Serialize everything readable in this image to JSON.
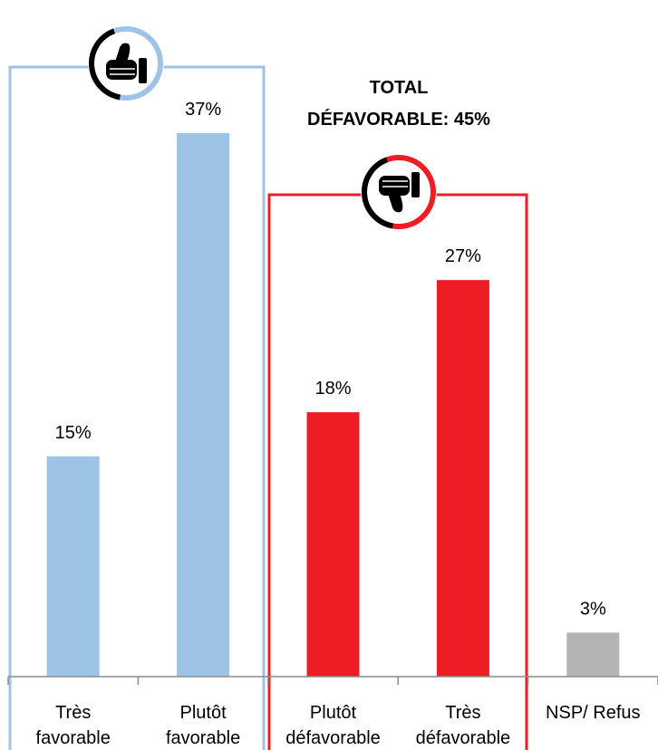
{
  "colors": {
    "favorable": "#9dc3e6",
    "defavorable": "#ee1c25",
    "neutral": "#b4b4b4",
    "favorable_frame": "#9dc3e6",
    "defavorable_frame": "#ee1c25",
    "axis": "#8c8c8c",
    "icon": "#000000"
  },
  "icons": {
    "favorable": "thumbs-up-icon",
    "defavorable": "thumbs-down-icon"
  },
  "total_defavorable": {
    "line1": "TOTAL",
    "line2": "DÉFAVORABLE: 45%"
  },
  "chart_data": {
    "type": "bar",
    "categories": [
      [
        "Très",
        "favorable"
      ],
      [
        "Plutôt",
        "favorable"
      ],
      [
        "Plutôt",
        "défavorable"
      ],
      [
        "Très",
        "défavorable"
      ],
      [
        "NSP/ Refus"
      ]
    ],
    "values": [
      15,
      37,
      18,
      27,
      3
    ],
    "value_labels": [
      "15%",
      "37%",
      "18%",
      "27%",
      "3%"
    ],
    "groups": [
      "favorable",
      "favorable",
      "defavorable",
      "defavorable",
      "neutral"
    ],
    "ylim": [
      0,
      37
    ],
    "grid": false,
    "legend": "none"
  }
}
